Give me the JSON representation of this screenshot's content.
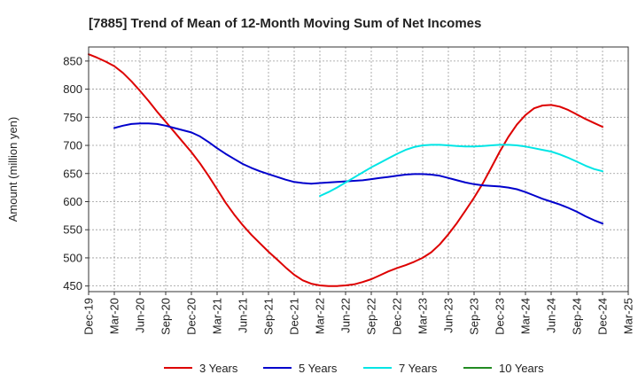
{
  "chart_data": {
    "type": "line",
    "title": "[7885]  Trend of Mean of 12-Month Moving Sum of Net Incomes",
    "xlabel": "",
    "ylabel": "Amount (million yen)",
    "ylim": [
      440,
      875
    ],
    "yticks": [
      450,
      500,
      550,
      600,
      650,
      700,
      750,
      800,
      850
    ],
    "xticks": [
      "Dec-19",
      "Mar-20",
      "Jun-20",
      "Sep-20",
      "Dec-20",
      "Mar-21",
      "Jun-21",
      "Sep-21",
      "Dec-21",
      "Mar-22",
      "Jun-22",
      "Sep-22",
      "Dec-22",
      "Mar-23",
      "Jun-23",
      "Sep-23",
      "Dec-23",
      "Mar-24",
      "Jun-24",
      "Sep-24",
      "Dec-24",
      "Mar-25"
    ],
    "grid": true,
    "legend_position": "bottom",
    "series": [
      {
        "name": "3 Years",
        "color": "#dd0000",
        "x": [
          "Dec-19",
          "Jan-20",
          "Feb-20",
          "Mar-20",
          "Apr-20",
          "May-20",
          "Jun-20",
          "Jul-20",
          "Aug-20",
          "Sep-20",
          "Oct-20",
          "Nov-20",
          "Dec-20",
          "Jan-21",
          "Feb-21",
          "Mar-21",
          "Apr-21",
          "May-21",
          "Jun-21",
          "Jul-21",
          "Aug-21",
          "Sep-21",
          "Oct-21",
          "Nov-21",
          "Dec-21",
          "Jan-22",
          "Feb-22",
          "Mar-22",
          "Apr-22",
          "May-22",
          "Jun-22",
          "Jul-22",
          "Aug-22",
          "Sep-22",
          "Oct-22",
          "Nov-22",
          "Dec-22",
          "Jan-23",
          "Feb-23",
          "Mar-23",
          "Apr-23",
          "May-23",
          "Jun-23",
          "Jul-23",
          "Aug-23",
          "Sep-23",
          "Oct-23",
          "Nov-23",
          "Dec-23",
          "Jan-24",
          "Feb-24",
          "Mar-24",
          "Apr-24",
          "May-24",
          "Jun-24",
          "Jul-24",
          "Aug-24",
          "Sep-24",
          "Oct-24",
          "Nov-24",
          "Dec-24"
        ],
        "values": [
          862,
          856,
          849,
          841,
          829,
          814,
          797,
          779,
          760,
          742,
          724,
          706,
          688,
          668,
          646,
          622,
          598,
          577,
          558,
          541,
          526,
          511,
          497,
          483,
          470,
          460,
          454,
          451,
          450,
          450,
          451,
          453,
          457,
          462,
          469,
          476,
          482,
          487,
          493,
          500,
          510,
          524,
          542,
          562,
          584,
          607,
          632,
          660,
          689,
          715,
          737,
          754,
          766,
          771,
          772,
          769,
          763,
          755,
          747,
          740,
          733
        ]
      },
      {
        "name": "5 Years",
        "color": "#0000cc",
        "x": [
          "Mar-20",
          "Apr-20",
          "May-20",
          "Jun-20",
          "Jul-20",
          "Aug-20",
          "Sep-20",
          "Oct-20",
          "Nov-20",
          "Dec-20",
          "Jan-21",
          "Feb-21",
          "Mar-21",
          "Apr-21",
          "May-21",
          "Jun-21",
          "Jul-21",
          "Aug-21",
          "Sep-21",
          "Oct-21",
          "Nov-21",
          "Dec-21",
          "Jan-22",
          "Feb-22",
          "Mar-22",
          "Apr-22",
          "May-22",
          "Jun-22",
          "Jul-22",
          "Aug-22",
          "Sep-22",
          "Oct-22",
          "Nov-22",
          "Dec-22",
          "Jan-23",
          "Feb-23",
          "Mar-23",
          "Apr-23",
          "May-23",
          "Jun-23",
          "Jul-23",
          "Aug-23",
          "Sep-23",
          "Oct-23",
          "Nov-23",
          "Dec-23",
          "Jan-24",
          "Feb-24",
          "Mar-24",
          "Apr-24",
          "May-24",
          "Jun-24",
          "Jul-24",
          "Aug-24",
          "Sep-24",
          "Oct-24",
          "Nov-24",
          "Dec-24"
        ],
        "values": [
          731,
          735,
          738,
          739,
          739,
          738,
          735,
          731,
          727,
          723,
          716,
          706,
          695,
          685,
          676,
          667,
          660,
          654,
          649,
          644,
          639,
          635,
          633,
          632,
          633,
          634,
          635,
          636,
          637,
          638,
          640,
          642,
          644,
          646,
          648,
          649,
          649,
          648,
          646,
          642,
          638,
          634,
          631,
          629,
          628,
          627,
          625,
          622,
          617,
          611,
          605,
          600,
          595,
          589,
          582,
          574,
          567,
          561
        ]
      },
      {
        "name": "7 Years",
        "color": "#00e5e5",
        "x": [
          "Mar-22",
          "Apr-22",
          "May-22",
          "Jun-22",
          "Jul-22",
          "Aug-22",
          "Sep-22",
          "Oct-22",
          "Nov-22",
          "Dec-22",
          "Jan-23",
          "Feb-23",
          "Mar-23",
          "Apr-23",
          "May-23",
          "Jun-23",
          "Jul-23",
          "Aug-23",
          "Sep-23",
          "Oct-23",
          "Nov-23",
          "Dec-23",
          "Jan-24",
          "Feb-24",
          "Mar-24",
          "Apr-24",
          "May-24",
          "Jun-24",
          "Jul-24",
          "Aug-24",
          "Sep-24",
          "Oct-24",
          "Nov-24",
          "Dec-24"
        ],
        "values": [
          610,
          617,
          625,
          634,
          643,
          652,
          661,
          669,
          677,
          685,
          692,
          697,
          700,
          701,
          701,
          700,
          699,
          698,
          698,
          699,
          700,
          701,
          701,
          700,
          698,
          695,
          692,
          689,
          684,
          678,
          671,
          664,
          658,
          654
        ]
      },
      {
        "name": "10 Years",
        "color": "#228b22",
        "x": [],
        "values": []
      }
    ]
  }
}
